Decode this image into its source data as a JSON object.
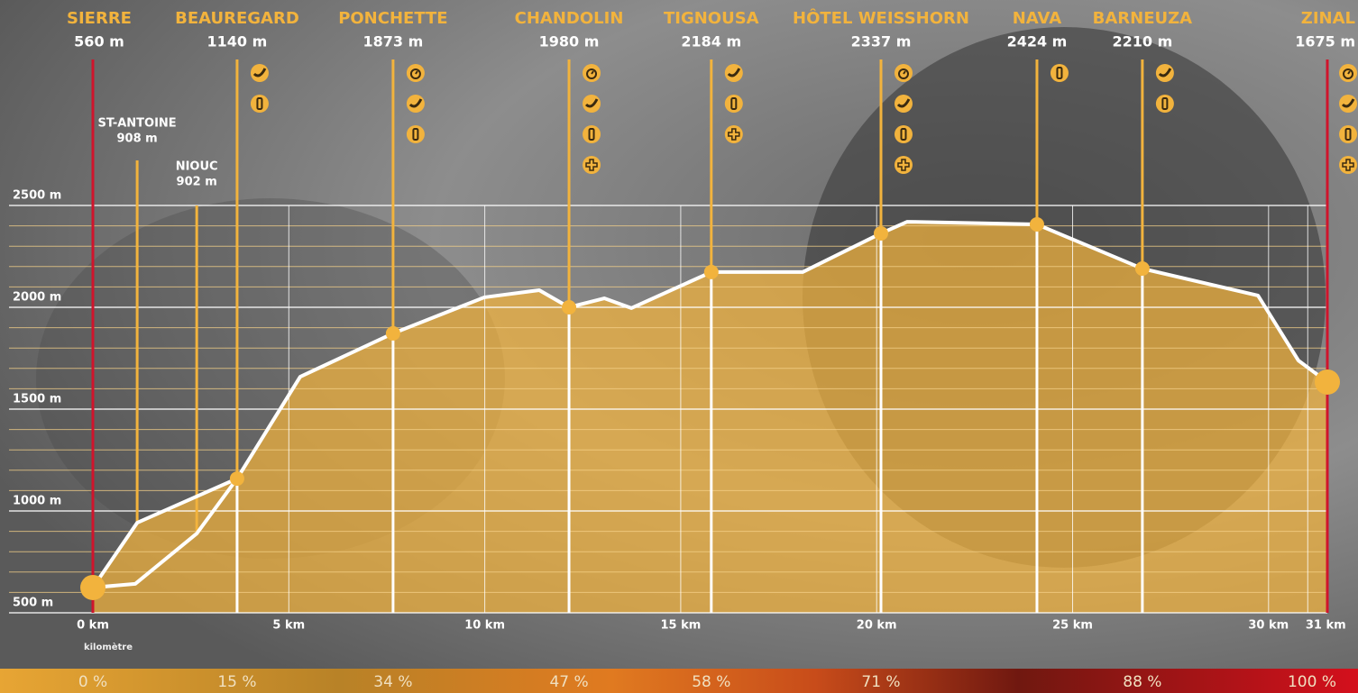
{
  "chart_data": {
    "type": "line",
    "color": "#ffffff",
    "station_color": "#f2b33d",
    "end_color": "#d0142c",
    "x_label": "kilomètre",
    "xlim": [
      0,
      31.5
    ],
    "xticks": [
      {
        "value": 0,
        "label": "0 km"
      },
      {
        "value": 5,
        "label": "5 km"
      },
      {
        "value": 10,
        "label": "10 km"
      },
      {
        "value": 15,
        "label": "15 km"
      },
      {
        "value": 20,
        "label": "20 km"
      },
      {
        "value": 25,
        "label": "25 km"
      },
      {
        "value": 30,
        "label": "30 km"
      },
      {
        "value": 31,
        "label": "31 km"
      }
    ],
    "ylim": [
      500,
      2500
    ],
    "yticks": [
      {
        "value": 500,
        "label": "500 m"
      },
      {
        "value": 1000,
        "label": "1000 m"
      },
      {
        "value": 1500,
        "label": "1500 m"
      },
      {
        "value": 2000,
        "label": "2000 m"
      },
      {
        "value": 2500,
        "label": "2500 m"
      }
    ],
    "yminorticks": [
      600,
      700,
      800,
      900,
      1100,
      1200,
      1300,
      1400,
      1600,
      1700,
      1800,
      1900,
      2100,
      2200,
      2300,
      2400
    ],
    "grid": true,
    "x": [
      0,
      1.13,
      3.68,
      5.29,
      7.66,
      9.99,
      11.39,
      12.15,
      13.05,
      13.74,
      15.78,
      18.11,
      20.11,
      20.78,
      24.09,
      26.78,
      29.73,
      30.76,
      31.5
    ],
    "y": [
      624,
      942,
      1159,
      1659,
      1872,
      2049,
      2084,
      2000,
      2044,
      1996,
      2173,
      2173,
      2363,
      2420,
      2407,
      2190,
      2058,
      1739,
      1633
    ],
    "variant_x": [
      0,
      1.08,
      2.65,
      3.68
    ],
    "variant_y": [
      624,
      642,
      889,
      1159
    ],
    "stations": [
      {
        "name": "SIERRE",
        "elevation": "560 m"
      },
      {
        "name": "BEAUREGARD",
        "elevation": "1140 m"
      },
      {
        "name": "PONCHETTE",
        "elevation": "1873 m"
      },
      {
        "name": "CHANDOLIN",
        "elevation": "1980 m"
      },
      {
        "name": "TIGNOUSA",
        "elevation": "2184 m"
      },
      {
        "name": "HÔTEL WEISSHORN",
        "elevation": "2337 m"
      },
      {
        "name": "NAVA",
        "elevation": "2424 m"
      },
      {
        "name": "BARNEUZA",
        "elevation": "2210 m"
      },
      {
        "name": "ZINAL",
        "elevation": "1675 m"
      }
    ],
    "waypoints": [
      {
        "name": "ST-ANTOINE",
        "elevation": "908 m"
      },
      {
        "name": "NIOUC",
        "elevation": "902 m"
      }
    ],
    "progress": [
      "0 %",
      "15 %",
      "34 %",
      "47 %",
      "58 %",
      "71 %",
      "88 %",
      "100 %"
    ]
  }
}
